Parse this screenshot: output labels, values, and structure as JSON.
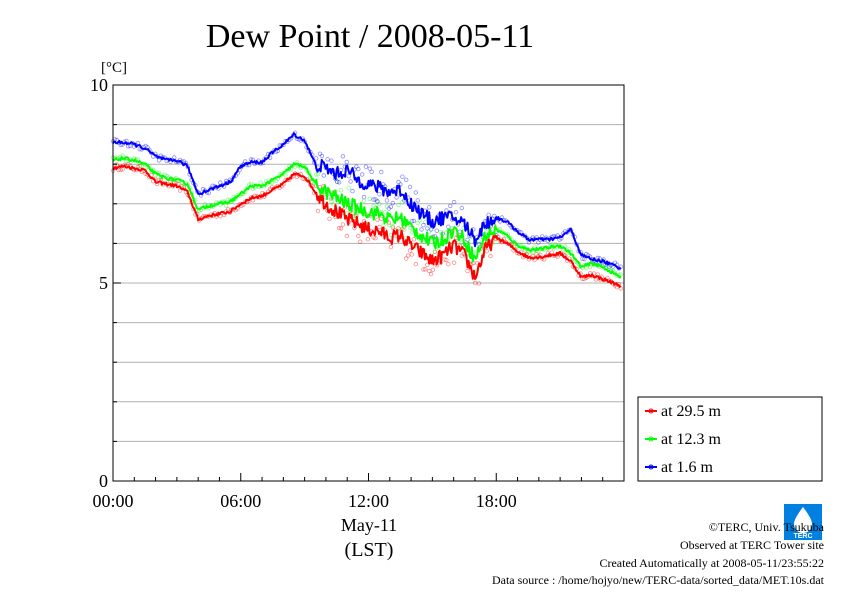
{
  "chart_data": {
    "type": "line",
    "title": "Dew Point / 2008-05-11",
    "ylabel": "[°C]",
    "xlabel_date": "May-11",
    "xlabel_tz": "(LST)",
    "ylim": [
      0,
      10
    ],
    "xlim_hours": [
      0,
      24
    ],
    "y_ticks": [
      {
        "value": 0,
        "label": "0"
      },
      {
        "value": 5,
        "label": "5"
      },
      {
        "value": 10,
        "label": "10"
      }
    ],
    "x_ticks": [
      {
        "value": 0,
        "label": "00:00"
      },
      {
        "value": 6,
        "label": "06:00"
      },
      {
        "value": 12,
        "label": "12:00"
      },
      {
        "value": 18,
        "label": "18:00"
      }
    ],
    "grid": true,
    "legend_position": "bottom-right outside",
    "hours": [
      0,
      0.5,
      1,
      1.5,
      2,
      2.5,
      3,
      3.5,
      4,
      4.5,
      5,
      5.5,
      6,
      6.5,
      7,
      7.5,
      8,
      8.5,
      9,
      9.5,
      10,
      10.5,
      11,
      11.5,
      12,
      12.5,
      13,
      13.5,
      14,
      14.5,
      15,
      15.5,
      16,
      16.5,
      17,
      17.5,
      18,
      18.5,
      19,
      19.5,
      20,
      20.5,
      21,
      21.5,
      22,
      22.5,
      23,
      23.5
    ],
    "series": [
      {
        "name": "at 29.5 m",
        "color": "#ff0000",
        "values": [
          7.9,
          7.95,
          7.9,
          7.85,
          7.55,
          7.5,
          7.45,
          7.3,
          6.6,
          6.7,
          6.75,
          6.8,
          7.0,
          7.15,
          7.2,
          7.35,
          7.5,
          7.75,
          7.7,
          7.3,
          7.0,
          6.8,
          6.6,
          6.5,
          6.35,
          6.3,
          6.15,
          6.2,
          5.95,
          5.75,
          5.55,
          5.7,
          5.95,
          5.7,
          5.15,
          5.85,
          6.15,
          6.0,
          5.8,
          5.65,
          5.65,
          5.7,
          5.75,
          5.55,
          5.15,
          5.2,
          5.1,
          5.0
        ]
      },
      {
        "name": "at 12.3 m",
        "color": "#00ff00",
        "values": [
          8.1,
          8.15,
          8.1,
          8.0,
          7.75,
          7.65,
          7.6,
          7.5,
          6.85,
          6.95,
          7.0,
          7.05,
          7.25,
          7.45,
          7.45,
          7.6,
          7.75,
          8.0,
          7.95,
          7.5,
          7.3,
          7.15,
          7.0,
          6.9,
          6.8,
          6.75,
          6.6,
          6.65,
          6.4,
          6.2,
          6.0,
          6.1,
          6.35,
          6.1,
          5.6,
          6.2,
          6.35,
          6.2,
          5.95,
          5.85,
          5.85,
          5.9,
          5.95,
          5.75,
          5.4,
          5.5,
          5.4,
          5.25
        ]
      },
      {
        "name": "at 1.6 m",
        "color": "#0000ff",
        "values": [
          8.55,
          8.55,
          8.5,
          8.4,
          8.2,
          8.1,
          8.1,
          7.95,
          7.25,
          7.35,
          7.45,
          7.55,
          7.95,
          8.05,
          8.05,
          8.3,
          8.5,
          8.75,
          8.6,
          8.0,
          7.9,
          7.75,
          7.85,
          7.6,
          7.5,
          7.4,
          7.3,
          7.35,
          7.0,
          6.75,
          6.55,
          6.65,
          6.65,
          6.5,
          6.1,
          6.5,
          6.65,
          6.55,
          6.3,
          6.1,
          6.1,
          6.1,
          6.15,
          6.35,
          5.7,
          5.6,
          5.55,
          5.45
        ]
      }
    ]
  },
  "footer": {
    "copyright": "©TERC, Univ. Tsukuba",
    "observed": "Observed at TERC Tower site",
    "created": "Created Automatically at 2008-05-11/23:55:22",
    "source": "Data source : /home/hojyo/new/TERC-data/sorted_data/MET.10s.dat",
    "logo_text": "TERC",
    "logo_color": "#0080e0"
  }
}
